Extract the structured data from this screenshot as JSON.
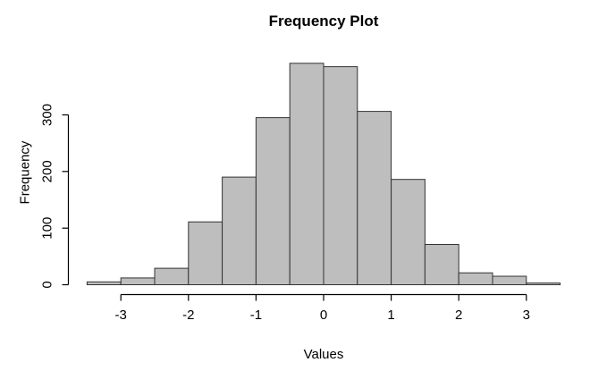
{
  "chart_data": {
    "type": "bar",
    "subtype": "histogram",
    "title": "Frequency Plot",
    "xlabel": "Values",
    "ylabel": "Frequency",
    "bin_width": 0.5,
    "bin_edges": [
      -3.5,
      -3.0,
      -2.5,
      -2.0,
      -1.5,
      -1.0,
      -0.5,
      0.0,
      0.5,
      1.0,
      1.5,
      2.0,
      2.5,
      3.0,
      3.5
    ],
    "counts": [
      5,
      12,
      29,
      111,
      190,
      295,
      391,
      385,
      306,
      186,
      71,
      21,
      15,
      3
    ],
    "x_ticks": [
      -3,
      -2,
      -1,
      0,
      1,
      2,
      3
    ],
    "y_ticks": [
      0,
      100,
      200,
      300
    ],
    "xlim": [
      -3.5,
      3.5
    ],
    "ylim": [
      0,
      391
    ],
    "grid": false,
    "legend": "none",
    "bar_fill": "#bebebe",
    "bar_border": "#333333",
    "axis_color": "#000000",
    "text_color": "#000000",
    "background": "#ffffff"
  }
}
